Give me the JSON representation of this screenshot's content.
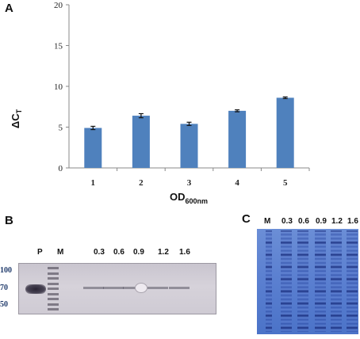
{
  "panels": {
    "a": {
      "letter": "A"
    },
    "b": {
      "letter": "B",
      "lanes": [
        "P",
        "M",
        "0.3",
        "0.6",
        "0.9",
        "1.2",
        "1.6"
      ],
      "markers": [
        "100",
        "70",
        "50"
      ]
    },
    "c": {
      "letter": "C",
      "lanes": [
        "M",
        "0.3",
        "0.6",
        "0.9",
        "1.2",
        "1.6"
      ]
    }
  },
  "chart_data": {
    "type": "bar",
    "categories": [
      "1",
      "2",
      "3",
      "4",
      "5"
    ],
    "values": [
      4.9,
      6.4,
      5.4,
      7.0,
      8.6
    ],
    "errors": [
      0.2,
      0.25,
      0.2,
      0.12,
      0.1
    ],
    "ylabel_main": "ΔC",
    "ylabel_sub": "T",
    "xlabel_main": "OD",
    "xlabel_sub": "600nm",
    "ylim": [
      0,
      20
    ],
    "yticks": [
      0,
      5,
      10,
      15,
      20
    ],
    "grid": false,
    "bar_color": "#4f81bd"
  }
}
